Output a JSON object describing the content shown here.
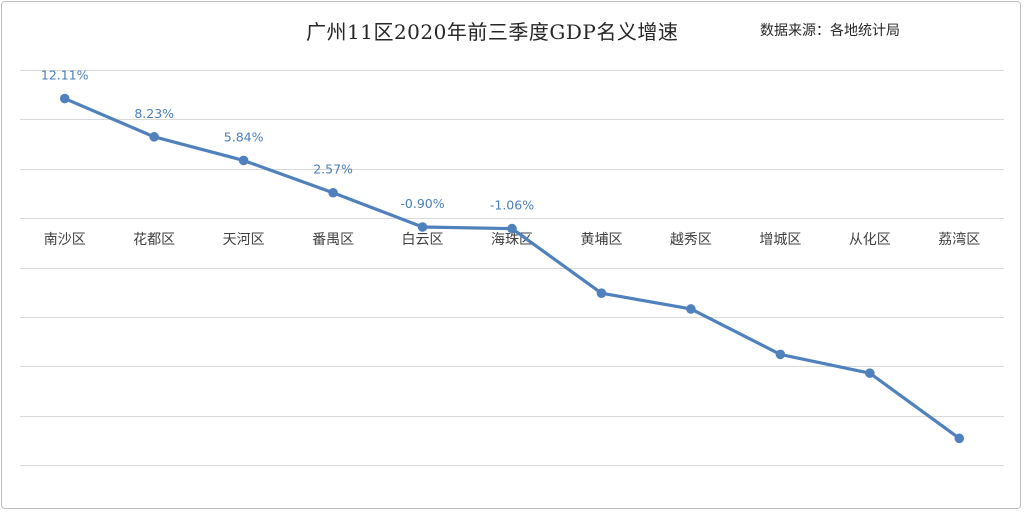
{
  "chart_data": {
    "type": "line",
    "title": "广州11区2020年前三季度GDP名义增速",
    "source": "数据来源：各地统计局",
    "categories": [
      "南沙区",
      "花都区",
      "天河区",
      "番禺区",
      "白云区",
      "海珠区",
      "黄埔区",
      "越秀区",
      "增城区",
      "从化区",
      "荔湾区"
    ],
    "series": [
      {
        "values": [
          12.11,
          8.23,
          5.84,
          2.57,
          -0.9,
          -1.06,
          -7.6,
          -9.2,
          -13.8,
          -15.7,
          -22.3
        ],
        "data_labels": [
          "12.11%",
          "8.23%",
          "5.84%",
          "2.57%",
          "-0.90%",
          "-1.06%",
          null,
          null,
          null,
          null,
          null
        ],
        "color": "#4f81bd"
      }
    ],
    "ylim": [
      -25,
      15
    ],
    "y_major_unit": 5,
    "y_tick_labels_shown": false,
    "grid": true,
    "legend": "none",
    "xlabel": "",
    "ylabel": ""
  }
}
